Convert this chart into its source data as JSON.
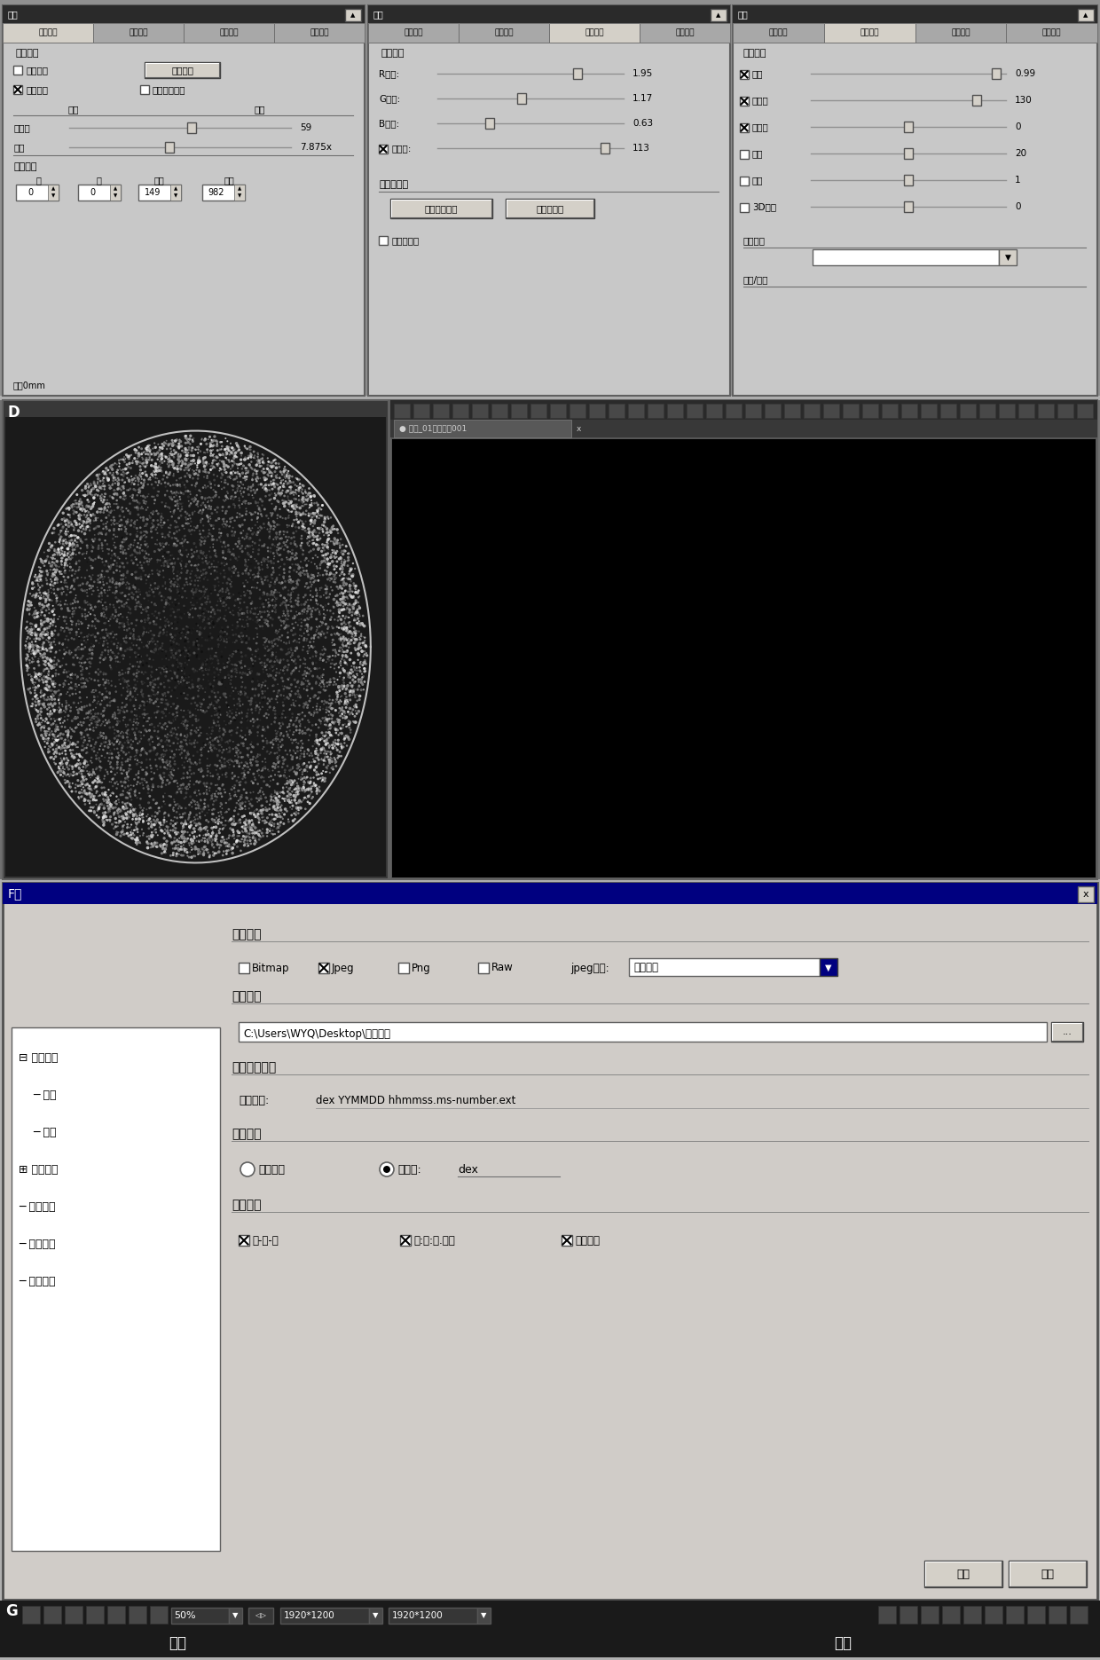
{
  "bg_color": "#b0b0b0",
  "panel_bg": "#c8c8c8",
  "panel_bg2": "#d4d0c8",
  "title_bar_dark": "#2a2a2a",
  "title_bar_blue": "#000080",
  "tab_active": "#d4d0c8",
  "tab_inactive": "#a8a8a8",
  "white": "#ffffff",
  "black": "#000000",
  "dark_gray": "#404040",
  "mid_gray": "#808080",
  "light_gray": "#d4d0c8",
  "button_face": "#d4d0c8",
  "taskbar_bg": "#202020",
  "image_bg": "#000000",
  "panel_border": "#606060",
  "p1_tabs": [
    "曝光功能",
    "图像调整",
    "颜色调整",
    "相机调整"
  ],
  "p1_active": 0,
  "p2_tabs": [
    "曝光功能",
    "图像调整",
    "颜色调整",
    "相机调整"
  ],
  "p2_active": 2,
  "p3_tabs": [
    "曝光功能",
    "图像调整",
    "颜色调整",
    "相机调整"
  ],
  "p3_active": 1,
  "p1_label": "曝光功能",
  "p1_cb1": "自动曝光",
  "p1_btn": "区域曝光",
  "p1_cb2": "调节增益",
  "p1_cb3": "调节曝光时间",
  "p1_min": "最小",
  "p1_max": "最大",
  "p1_target_lbl": "目标值",
  "p1_target_val": "59",
  "p1_gain_lbl": "增益",
  "p1_gain_val": "7.875x",
  "p1_timer_lbl": "曝光时钟",
  "p1_min_lbl": "分",
  "p1_sec_lbl": "秒",
  "p1_ms_lbl": "毫秒",
  "p1_us_lbl": "微秒",
  "p1_spin": [
    "0",
    "0",
    "149",
    "982"
  ],
  "p1_bottom": "片宽0mm",
  "p2_label": "颜色调整",
  "p2_r": "R增益:",
  "p2_r_val": "1.95",
  "p2_g": "G增益:",
  "p2_g_val": "1.17",
  "p2_b": "B增益:",
  "p2_b_val": "0.63",
  "p2_sat": "饱和度:",
  "p2_sat_val": "113",
  "p2_wb_lbl": "白平衡功能",
  "p2_btn1": "一次性白平衡",
  "p2_btn2": "区域白平衡",
  "p2_auto_wb": "自动白平衡",
  "p3_label": "图像调整",
  "p3_items": [
    "亮度",
    "对比度",
    "黑电平",
    "锐度",
    "伸缩",
    "3D减噪"
  ],
  "p3_checked": [
    true,
    true,
    true,
    false,
    false,
    false
  ],
  "p3_vals": [
    "0.99",
    "130",
    "0",
    "20",
    "1",
    "0"
  ],
  "p3_vpos": [
    0.95,
    0.85,
    0.5,
    0.5,
    0.5,
    0.5
  ],
  "p3_config_lbl": "图像配置",
  "p3_config_val": "",
  "p3_conn_lbl": "连接/下行",
  "D_label": "D",
  "right_tab_text": "图像_01序列图像001",
  "F_title": "F　",
  "F_close": "x",
  "tree_items": [
    [
      0,
      "⊟ 拍照设置"
    ],
    [
      1,
      "─ 常规"
    ],
    [
      1,
      "─ 高级"
    ],
    [
      0,
      "⊞ 视频设置"
    ],
    [
      0,
      "─ 语言设置"
    ],
    [
      0,
      "─ 偏好设置"
    ],
    [
      0,
      "─ 高级设置"
    ]
  ],
  "sec_img_type": "图片类型",
  "img_types": [
    "Bitmap",
    "Jpeg",
    "Png",
    "Raw"
  ],
  "img_checked": [
    false,
    true,
    false,
    false
  ],
  "jpeg_lbl": "jpeg质量:",
  "jpeg_val": "高等质量",
  "sec_path": "图片路径",
  "path_val": "C:\\Users\\WYQ\\Desktop\\专利图片",
  "browse_btn": "...",
  "sec_name": "图片名称设置",
  "name_preview_lbl": "名称预览:",
  "name_preview_val": "dex YYMMDD hhmmss.ms-number.ext",
  "sec_prefix": "前缀字符",
  "radio1_lbl": "设备名称",
  "radio2_lbl": "自定义:",
  "radio2_val": "dex",
  "sec_suffix": "后缀类型",
  "suffix_items": [
    "年-月-日",
    "时:分:秒.毫秒",
    "序列编号"
  ],
  "suffix_checked": [
    true,
    true,
    true
  ],
  "ok_btn": "确定",
  "cancel_btn": "取消",
  "G_label": "G",
  "zoom_val": "50%",
  "res1": "1920*1200",
  "res2": "1920*1200",
  "btm_left": "拍照",
  "btm_right": "录像"
}
